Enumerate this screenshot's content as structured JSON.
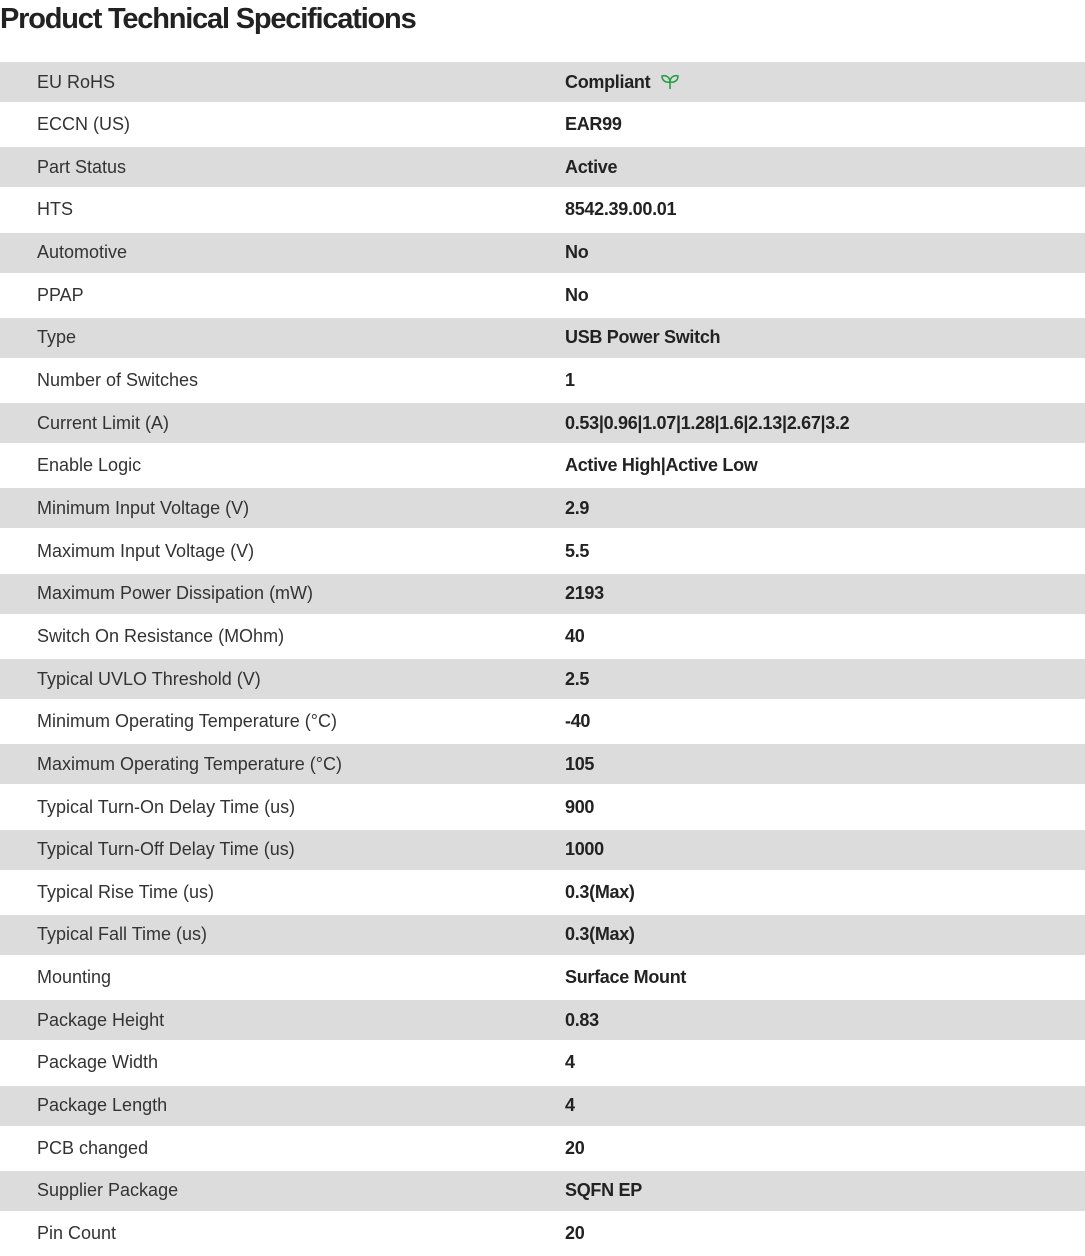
{
  "title": "Product Technical Specifications",
  "accent_color": "#2a9d4a",
  "specs": [
    {
      "label": "EU RoHS",
      "value": "Compliant",
      "icon": "leaf-icon"
    },
    {
      "label": "ECCN (US)",
      "value": "EAR99"
    },
    {
      "label": "Part Status",
      "value": "Active"
    },
    {
      "label": "HTS",
      "value": "8542.39.00.01"
    },
    {
      "label": "Automotive",
      "value": "No"
    },
    {
      "label": "PPAP",
      "value": "No"
    },
    {
      "label": "Type",
      "value": "USB Power Switch"
    },
    {
      "label": "Number of Switches",
      "value": "1"
    },
    {
      "label": "Current Limit (A)",
      "value": "0.53|0.96|1.07|1.28|1.6|2.13|2.67|3.2"
    },
    {
      "label": "Enable Logic",
      "value": "Active High|Active Low"
    },
    {
      "label": "Minimum Input Voltage (V)",
      "value": "2.9"
    },
    {
      "label": "Maximum Input Voltage (V)",
      "value": "5.5"
    },
    {
      "label": "Maximum Power Dissipation (mW)",
      "value": "2193"
    },
    {
      "label": "Switch On Resistance (MOhm)",
      "value": "40"
    },
    {
      "label": "Typical UVLO Threshold (V)",
      "value": "2.5"
    },
    {
      "label": "Minimum Operating Temperature (°C)",
      "value": "-40"
    },
    {
      "label": "Maximum Operating Temperature (°C)",
      "value": "105"
    },
    {
      "label": "Typical Turn-On Delay Time (us)",
      "value": "900"
    },
    {
      "label": "Typical Turn-Off Delay Time (us)",
      "value": "1000"
    },
    {
      "label": "Typical Rise Time (us)",
      "value": "0.3(Max)"
    },
    {
      "label": "Typical Fall Time (us)",
      "value": "0.3(Max)"
    },
    {
      "label": "Mounting",
      "value": "Surface Mount"
    },
    {
      "label": "Package Height",
      "value": "0.83"
    },
    {
      "label": "Package Width",
      "value": "4"
    },
    {
      "label": "Package Length",
      "value": "4"
    },
    {
      "label": "PCB changed",
      "value": "20"
    },
    {
      "label": "Supplier Package",
      "value": "SQFN EP"
    },
    {
      "label": "Pin Count",
      "value": "20"
    }
  ]
}
